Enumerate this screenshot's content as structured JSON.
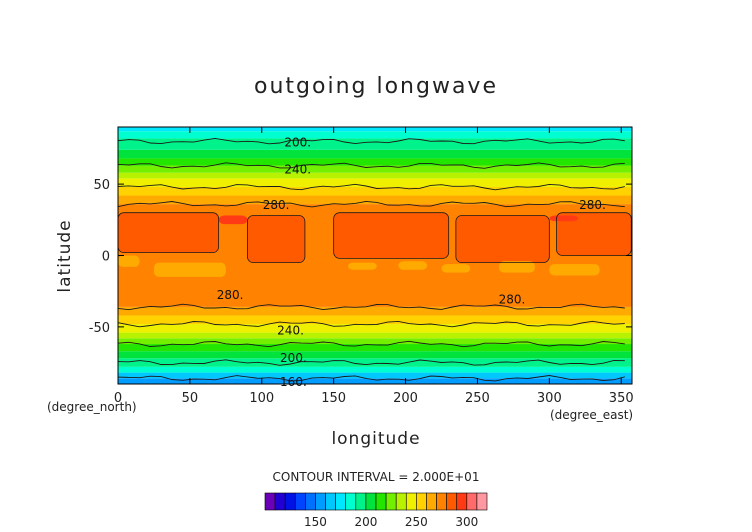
{
  "chart_data": {
    "type": "heatmap",
    "title": "outgoing longwave",
    "xlabel": "longitude",
    "ylabel": "latitude",
    "x_units": "(degree_east)",
    "y_units": "(degree_north)",
    "xlim": [
      0,
      357.5
    ],
    "ylim": [
      -90,
      90
    ],
    "x_ticks": [
      0,
      50,
      100,
      150,
      200,
      250,
      300,
      350
    ],
    "y_ticks": [
      -50,
      0,
      50
    ],
    "latitude_bands": [
      {
        "lat": [
          -90,
          -86
        ],
        "value": 155
      },
      {
        "lat": [
          -86,
          -82
        ],
        "value": 165
      },
      {
        "lat": [
          -82,
          -78
        ],
        "value": 180
      },
      {
        "lat": [
          -78,
          -72
        ],
        "value": 190
      },
      {
        "lat": [
          -72,
          -67
        ],
        "value": 200
      },
      {
        "lat": [
          -67,
          -62
        ],
        "value": 210
      },
      {
        "lat": [
          -62,
          -58
        ],
        "value": 225
      },
      {
        "lat": [
          -58,
          -54
        ],
        "value": 235
      },
      {
        "lat": [
          -54,
          -48
        ],
        "value": 245
      },
      {
        "lat": [
          -48,
          -42
        ],
        "value": 255
      },
      {
        "lat": [
          -42,
          -36
        ],
        "value": 265
      },
      {
        "lat": [
          -36,
          36
        ],
        "value": 275
      },
      {
        "lat": [
          36,
          42
        ],
        "value": 265
      },
      {
        "lat": [
          42,
          48
        ],
        "value": 255
      },
      {
        "lat": [
          48,
          54
        ],
        "value": 245
      },
      {
        "lat": [
          54,
          58
        ],
        "value": 235
      },
      {
        "lat": [
          58,
          63
        ],
        "value": 225
      },
      {
        "lat": [
          63,
          68
        ],
        "value": 215
      },
      {
        "lat": [
          68,
          74
        ],
        "value": 205
      },
      {
        "lat": [
          74,
          82
        ],
        "value": 195
      },
      {
        "lat": [
          82,
          87
        ],
        "value": 185
      },
      {
        "lat": [
          87,
          90
        ],
        "value": 175
      }
    ],
    "warm_patches": [
      {
        "lon": [
          90,
          130
        ],
        "lat": [
          -5,
          28
        ],
        "value": 285
      },
      {
        "lon": [
          150,
          230
        ],
        "lat": [
          -2,
          30
        ],
        "value": 285
      },
      {
        "lon": [
          235,
          300
        ],
        "lat": [
          -5,
          28
        ],
        "value": 285
      },
      {
        "lon": [
          0,
          70
        ],
        "lat": [
          2,
          30
        ],
        "value": 285
      },
      {
        "lon": [
          305,
          357
        ],
        "lat": [
          0,
          30
        ],
        "value": 285
      },
      {
        "lon": [
          70,
          90
        ],
        "lat": [
          22,
          28
        ],
        "value": 295
      },
      {
        "lon": [
          300,
          320
        ],
        "lat": [
          24,
          28
        ],
        "value": 295
      }
    ],
    "cool_patches": [
      {
        "lon": [
          0,
          15
        ],
        "lat": [
          -8,
          0
        ],
        "value": 265
      },
      {
        "lon": [
          25,
          75
        ],
        "lat": [
          -15,
          -5
        ],
        "value": 265
      },
      {
        "lon": [
          160,
          180
        ],
        "lat": [
          -10,
          -5
        ],
        "value": 265
      },
      {
        "lon": [
          195,
          215
        ],
        "lat": [
          -10,
          -4
        ],
        "value": 265
      },
      {
        "lon": [
          225,
          245
        ],
        "lat": [
          -12,
          -6
        ],
        "value": 265
      },
      {
        "lon": [
          265,
          290
        ],
        "lat": [
          -12,
          -4
        ],
        "value": 265
      },
      {
        "lon": [
          300,
          335
        ],
        "lat": [
          -14,
          -6
        ],
        "value": 265
      }
    ],
    "contour_labels": [
      {
        "text": "200.",
        "lon": 125,
        "lat": 80
      },
      {
        "text": "240.",
        "lon": 125,
        "lat": 61
      },
      {
        "text": "280.",
        "lon": 110,
        "lat": 36
      },
      {
        "text": "280.",
        "lon": 330,
        "lat": 36
      },
      {
        "text": "280.",
        "lon": 78,
        "lat": -27
      },
      {
        "text": "280.",
        "lon": 274,
        "lat": -30
      },
      {
        "text": "240.",
        "lon": 120,
        "lat": -52
      },
      {
        "text": "200.",
        "lon": 122,
        "lat": -71
      },
      {
        "text": "160.",
        "lon": 122,
        "lat": -88
      }
    ],
    "contour_interval_text": "CONTOUR INTERVAL = 2.000E+01",
    "colorbar": {
      "levels": [
        100,
        110,
        120,
        130,
        140,
        150,
        160,
        170,
        180,
        190,
        200,
        210,
        220,
        230,
        240,
        250,
        260,
        270,
        280,
        290,
        300,
        310
      ],
      "colors": [
        "#6a00b8",
        "#2200d4",
        "#0012e6",
        "#0044ff",
        "#0070ff",
        "#009cff",
        "#00c8ff",
        "#00e8ff",
        "#00ffd0",
        "#00f28a",
        "#00e23c",
        "#22e600",
        "#72f000",
        "#b8f200",
        "#eef000",
        "#ffd200",
        "#ffaa00",
        "#ff8200",
        "#ff5a00",
        "#ff3a14",
        "#ff6a6a",
        "#ff98a0"
      ],
      "tick_values": [
        150,
        200,
        250,
        300
      ]
    }
  }
}
